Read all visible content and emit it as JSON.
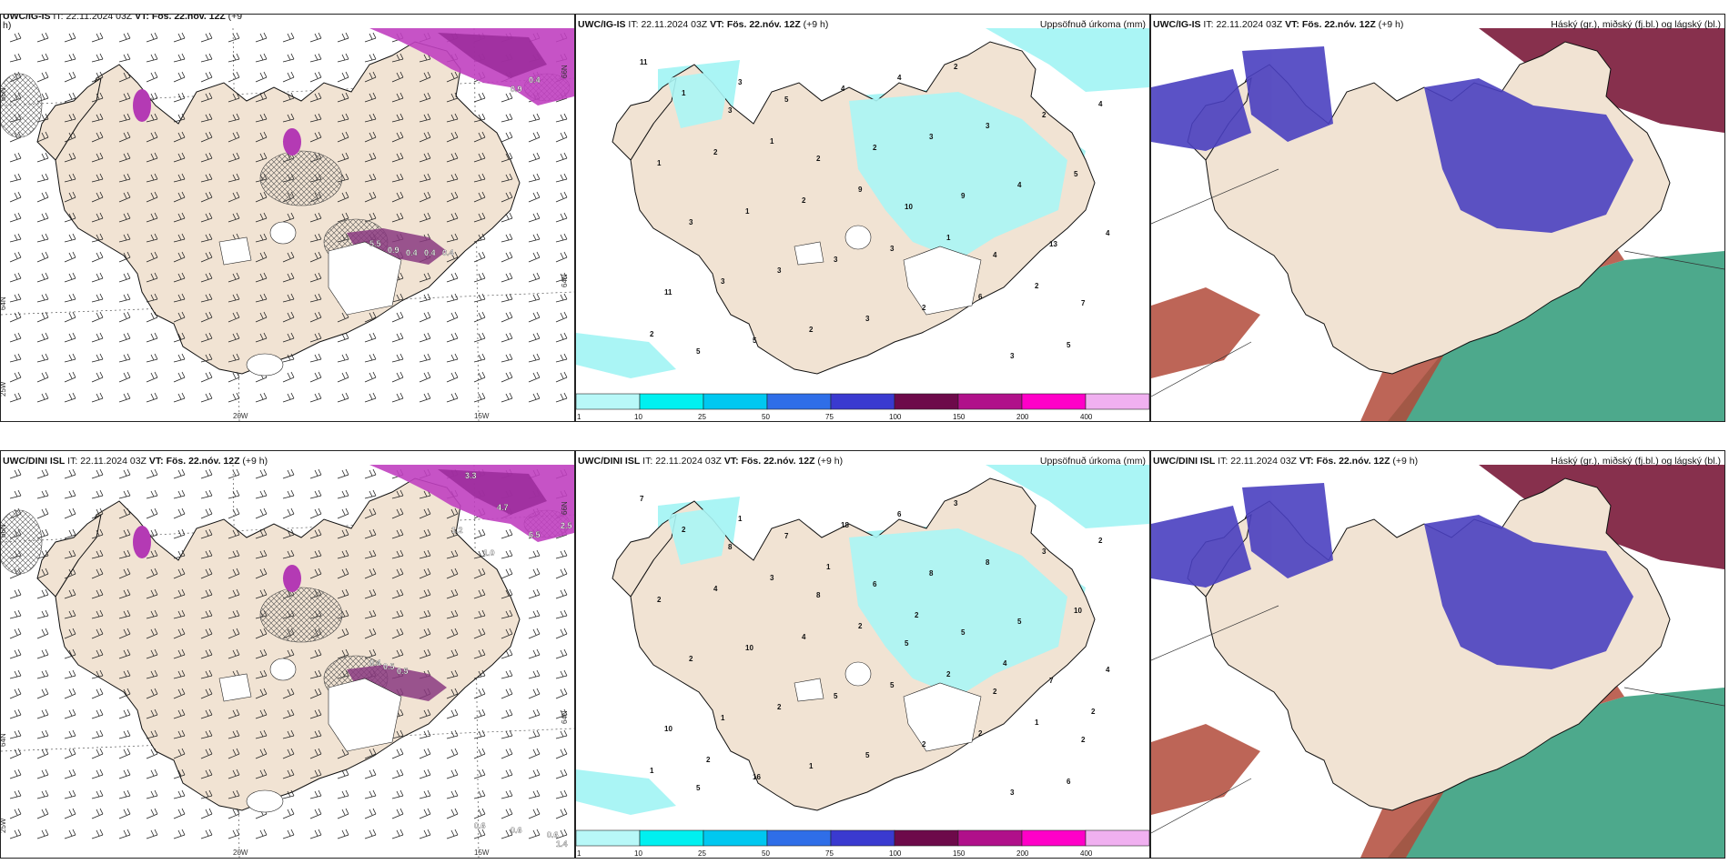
{
  "panels": [
    {
      "model": "UWC/IG-IS",
      "it_label": "IT:",
      "it": "22.11.2024 03Z",
      "vt_label": "VT:",
      "vt": "Fös. 22.nóv. 12Z",
      "lead": "(+9",
      "lead_wrap": "h)",
      "right_title": "",
      "type": "wind",
      "labels": [
        "5.5",
        "0.9",
        "0.4",
        "0.4",
        "0.4",
        "0.9",
        "0.4"
      ],
      "axis": {
        "lon_a": "20W",
        "lon_b": "15W",
        "lat_a": "66N",
        "lat_b": "64N",
        "lat_c": "25W",
        "lat_r": "66N",
        "lat_r2": "64N"
      }
    },
    {
      "model": "UWC/IG-IS",
      "it_label": "IT:",
      "it": "22.11.2024 03Z",
      "vt_label": "VT:",
      "vt": "Fös. 22.nóv. 12Z",
      "lead": "(+9 h)",
      "right_title": "Uppsöfnuð úrkoma (mm)",
      "type": "precip",
      "numbers": [
        "11",
        "3",
        "2",
        "10",
        "4",
        "7",
        "5",
        "5",
        "2",
        "9",
        "13",
        "11",
        "5",
        "4",
        "3",
        "4",
        "4",
        "3",
        "2",
        "4",
        "3",
        "5",
        "3",
        "3",
        "3",
        "2",
        "2",
        "1",
        "1",
        "3",
        "2",
        "3",
        "4",
        "2",
        "2",
        "3",
        "6",
        "5",
        "1",
        "1",
        "9",
        "1",
        "2",
        "2",
        "3"
      ],
      "colorbar": [
        "1",
        "10",
        "25",
        "50",
        "75",
        "100",
        "150",
        "200",
        "400"
      ]
    },
    {
      "model": "UWC/IG-IS",
      "it_label": "IT:",
      "it": "22.11.2024 03Z",
      "vt_label": "VT:",
      "vt": "Fös. 22.nóv. 12Z",
      "lead": "(+9 h)",
      "right_title": "Háský (gr.), miðský (fj.bl.) og lágský (bl.)",
      "type": "cloud"
    },
    {
      "model": "UWC/DINI ISL",
      "it_label": "IT:",
      "it": "22.11.2024 03Z",
      "vt_label": "VT:",
      "vt": "Fös. 22.nóv. 12Z",
      "lead": "(+9 h)",
      "right_title": "",
      "type": "wind",
      "labels": [
        "3.3",
        "4.7",
        "6.5",
        "2.5",
        "1.2",
        "1.0",
        "0.4",
        "0.5",
        "0.5",
        "0.6",
        "0.6",
        "0.6",
        "1.4"
      ],
      "axis": {
        "lon_a": "20W",
        "lon_b": "15W",
        "lat_a": "66N",
        "lat_b": "64N",
        "lat_c": "25W",
        "lat_r": "66N",
        "lat_r2": "64N"
      }
    },
    {
      "model": "UWC/DINI ISL",
      "it_label": "IT:",
      "it": "22.11.2024 03Z",
      "vt_label": "VT:",
      "vt": "Fös. 22.nóv. 12Z",
      "lead": "(+9 h)",
      "right_title": "Uppsöfnuð úrkoma (mm)",
      "type": "precip",
      "numbers": [
        "7",
        "8",
        "8",
        "5",
        "2",
        "2",
        "5",
        "7",
        "6",
        "5",
        "7",
        "10",
        "16",
        "18",
        "8",
        "5",
        "4",
        "1",
        "1",
        "6",
        "8",
        "10",
        "2",
        "2",
        "5",
        "3",
        "3",
        "2",
        "10",
        "5",
        "2",
        "3",
        "2",
        "4",
        "4",
        "5",
        "2",
        "6",
        "2",
        "3",
        "2",
        "2",
        "1",
        "1",
        "1",
        "1",
        "2",
        "4",
        "2",
        "2"
      ],
      "colorbar": [
        "1",
        "10",
        "25",
        "50",
        "75",
        "100",
        "150",
        "200",
        "400"
      ]
    },
    {
      "model": "UWC/DINI ISL",
      "it_label": "IT:",
      "it": "22.11.2024 03Z",
      "vt_label": "VT:",
      "vt": "Fös. 22.nóv. 12Z",
      "lead": "(+9 h)",
      "right_title": "Háský (gr.), miðský (fj.bl.) og lágský (bl.)",
      "type": "cloud"
    }
  ],
  "colors": {
    "land": "#f1e3d3",
    "coast": "#111111",
    "precip_light": "#aaf5f5",
    "precip_1": "#b8f8f8",
    "precip_2": "#00f0f0",
    "precip_3": "#00c8f0",
    "precip_4": "#2f6ee8",
    "precip_5": "#3a3ad0",
    "precip_6": "#6d0a4a",
    "precip_7": "#b0108a",
    "precip_8": "#ff00c8",
    "precip_9": "#f0b0f0",
    "cloud_high": "#2e9a78",
    "cloud_mid": "#b24a3a",
    "cloud_low": "#4a40c0"
  }
}
